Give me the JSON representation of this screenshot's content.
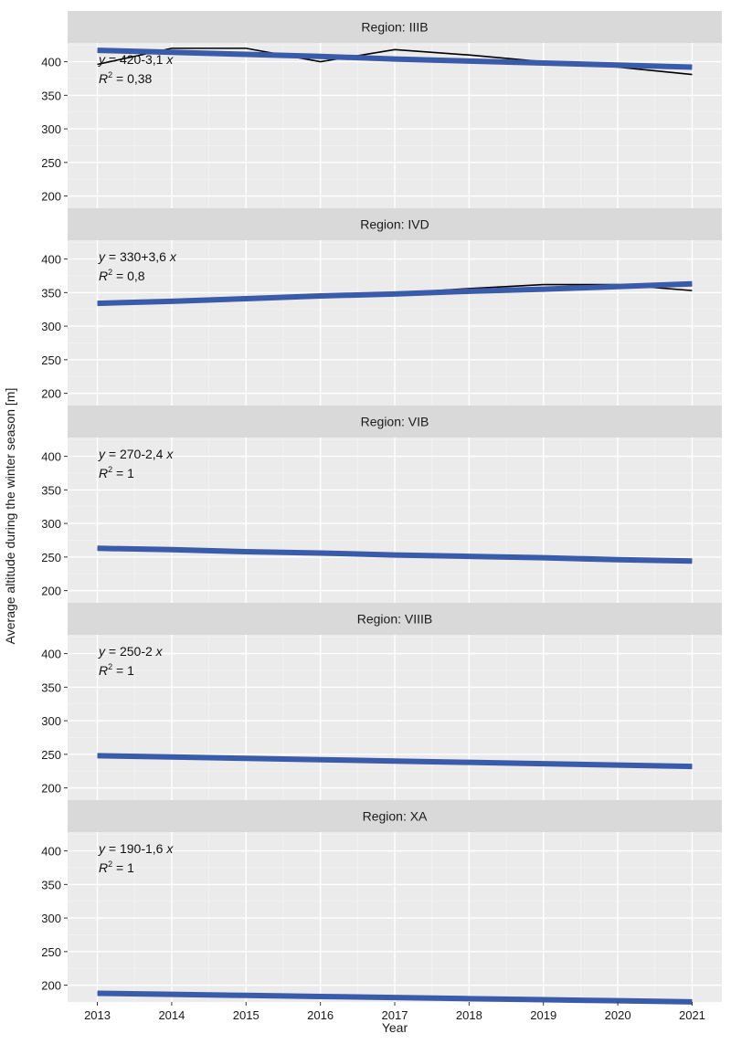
{
  "chart_data": {
    "type": "line",
    "facet_label_prefix": "Region: ",
    "xlabel": "Year",
    "ylabel": "Average altitude during the winter season [m]",
    "x": [
      2013,
      2014,
      2015,
      2016,
      2017,
      2018,
      2019,
      2020,
      2021
    ],
    "xlim": [
      2012.6,
      2021.4
    ],
    "ylim": [
      175,
      428
    ],
    "yticks": [
      200,
      250,
      300,
      350,
      400
    ],
    "grid": true,
    "colors": {
      "fit": "#3a5ba9",
      "observed": "#000000",
      "panel": "#ebebeb",
      "strip": "#d9d9d9"
    },
    "panels": [
      {
        "region": "IIIB",
        "equation": "= 420-3,1",
        "r2": "= 0,38",
        "observed": [
          396,
          420,
          420,
          400,
          418,
          410,
          400,
          392,
          381
        ],
        "fit": [
          417,
          414,
          411,
          408,
          404,
          401,
          398,
          395,
          392
        ]
      },
      {
        "region": "IVD",
        "equation": "= 330+3,6",
        "r2": "= 0,8",
        "observed": [
          333,
          337,
          341,
          346,
          349,
          356,
          362,
          362,
          353
        ],
        "fit": [
          334,
          337,
          341,
          345,
          348,
          352,
          355,
          359,
          363
        ]
      },
      {
        "region": "VIB",
        "equation": "= 270-2,4",
        "r2": "= 1",
        "observed": [
          263,
          261,
          258,
          256,
          253,
          251,
          249,
          246,
          244
        ],
        "fit": [
          263,
          261,
          258,
          256,
          253,
          251,
          249,
          246,
          244
        ]
      },
      {
        "region": "VIIIB",
        "equation": "= 250-2",
        "r2": "= 1",
        "observed": [
          248,
          246,
          244,
          242,
          240,
          238,
          236,
          234,
          232
        ],
        "fit": [
          248,
          246,
          244,
          242,
          240,
          238,
          236,
          234,
          232
        ]
      },
      {
        "region": "XA",
        "equation": "= 190-1,6",
        "r2": "= 1",
        "observed": [
          188,
          186.4,
          184.8,
          183.2,
          181.6,
          180,
          178.4,
          176.8,
          175.2
        ],
        "fit": [
          188,
          186.4,
          184.8,
          183.2,
          181.6,
          180,
          178.4,
          176.8,
          175.2
        ]
      }
    ]
  }
}
